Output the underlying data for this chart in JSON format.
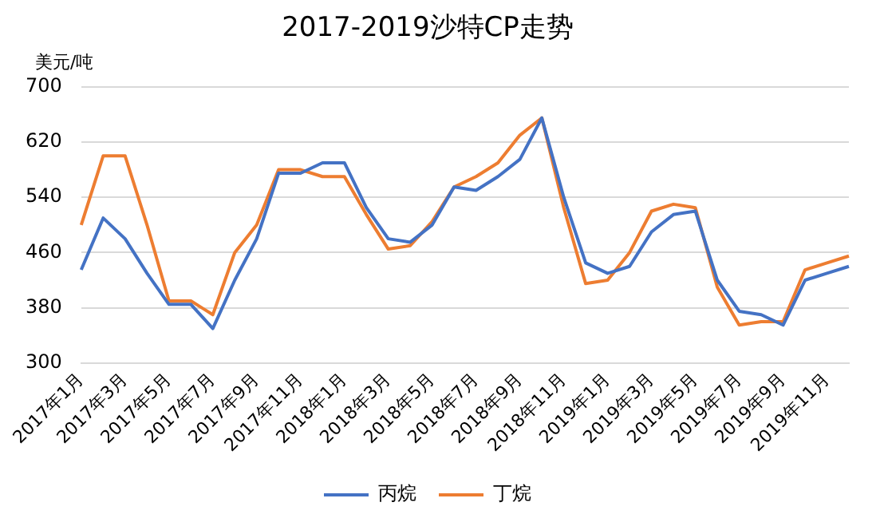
{
  "chart_data": {
    "type": "line",
    "title": "2017-2019沙特CP走势",
    "ylabel": "美元/吨",
    "categories": [
      "2017年1月",
      null,
      "2017年3月",
      null,
      "2017年5月",
      null,
      "2017年7月",
      null,
      "2017年9月",
      null,
      "2017年11月",
      null,
      "2018年1月",
      null,
      "2018年3月",
      null,
      "2018年5月",
      null,
      "2018年7月",
      null,
      "2018年9月",
      null,
      "2018年11月",
      null,
      "2019年1月",
      null,
      "2019年3月",
      null,
      "2019年5月",
      null,
      "2019年7月",
      null,
      "2019年9月",
      null,
      "2019年11月",
      null
    ],
    "series": [
      {
        "name": "丙烷",
        "color": "#4472c4",
        "values": [
          435,
          510,
          480,
          430,
          385,
          385,
          350,
          420,
          480,
          575,
          575,
          590,
          590,
          525,
          480,
          475,
          500,
          555,
          550,
          570,
          595,
          655,
          540,
          445,
          430,
          440,
          490,
          515,
          520,
          420,
          375,
          370,
          355,
          420,
          430,
          440
        ]
      },
      {
        "name": "丁烷",
        "color": "#ed7d31",
        "values": [
          500,
          600,
          600,
          500,
          390,
          390,
          370,
          460,
          500,
          580,
          580,
          570,
          570,
          515,
          465,
          470,
          505,
          555,
          570,
          590,
          630,
          655,
          525,
          415,
          420,
          460,
          520,
          530,
          525,
          410,
          355,
          360,
          360,
          435,
          445,
          455
        ]
      }
    ],
    "ylim": [
      300,
      700
    ],
    "yticks": [
      300,
      380,
      460,
      540,
      620,
      700
    ],
    "grid": "y",
    "legend": "bottom",
    "marker": "none",
    "line_style": "solid"
  }
}
